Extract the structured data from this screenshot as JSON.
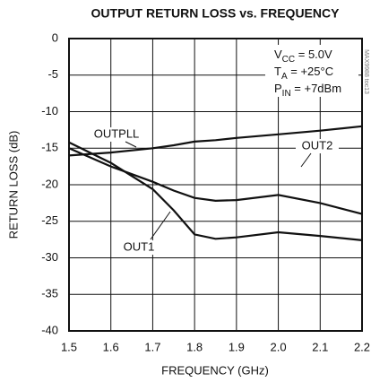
{
  "chart_data": {
    "type": "line",
    "title": "OUTPUT RETURN LOSS vs. FREQUENCY",
    "xlabel": "FREQUENCY (GHz)",
    "ylabel": "RETURN LOSS (dB)",
    "x": [
      1.5,
      1.6,
      1.7,
      1.75,
      1.8,
      1.85,
      1.9,
      2.0,
      2.1,
      2.2
    ],
    "series": [
      {
        "name": "OUTPLL",
        "color": "#111111",
        "values": [
          -16,
          -15.6,
          -15,
          -14.6,
          -14.1,
          -13.9,
          -13.6,
          -13.1,
          -12.6,
          -12
        ]
      },
      {
        "name": "OUT2",
        "color": "#111111",
        "values": [
          -15,
          -17.5,
          -19.6,
          -20.8,
          -21.8,
          -22.2,
          -22.1,
          -21.4,
          -22.5,
          -24
        ]
      },
      {
        "name": "OUT1",
        "color": "#111111",
        "values": [
          -14.2,
          -17,
          -20.6,
          -23.5,
          -26.8,
          -27.4,
          -27.2,
          -26.5,
          -27,
          -27.6
        ]
      }
    ],
    "xlim": [
      1.5,
      2.2
    ],
    "xticks": [
      1.5,
      1.6,
      1.7,
      1.8,
      1.9,
      {
        "value": 2,
        "label": "2.0"
      },
      2.1,
      2.2
    ],
    "ylim": [
      -40,
      0
    ],
    "yticks": [
      0,
      -5,
      -10,
      -15,
      -20,
      -25,
      -30,
      -35,
      -40
    ],
    "grid": true,
    "conditions": [
      {
        "symbol": "V",
        "subscript": "CC",
        "value": " = 5.0V"
      },
      {
        "symbol": "T",
        "subscript": "A",
        "value": " = +25°C"
      },
      {
        "symbol": "P",
        "subscript": "IN",
        "value": " = +7dBm"
      }
    ],
    "annotation": "MAX9988 toc13"
  }
}
